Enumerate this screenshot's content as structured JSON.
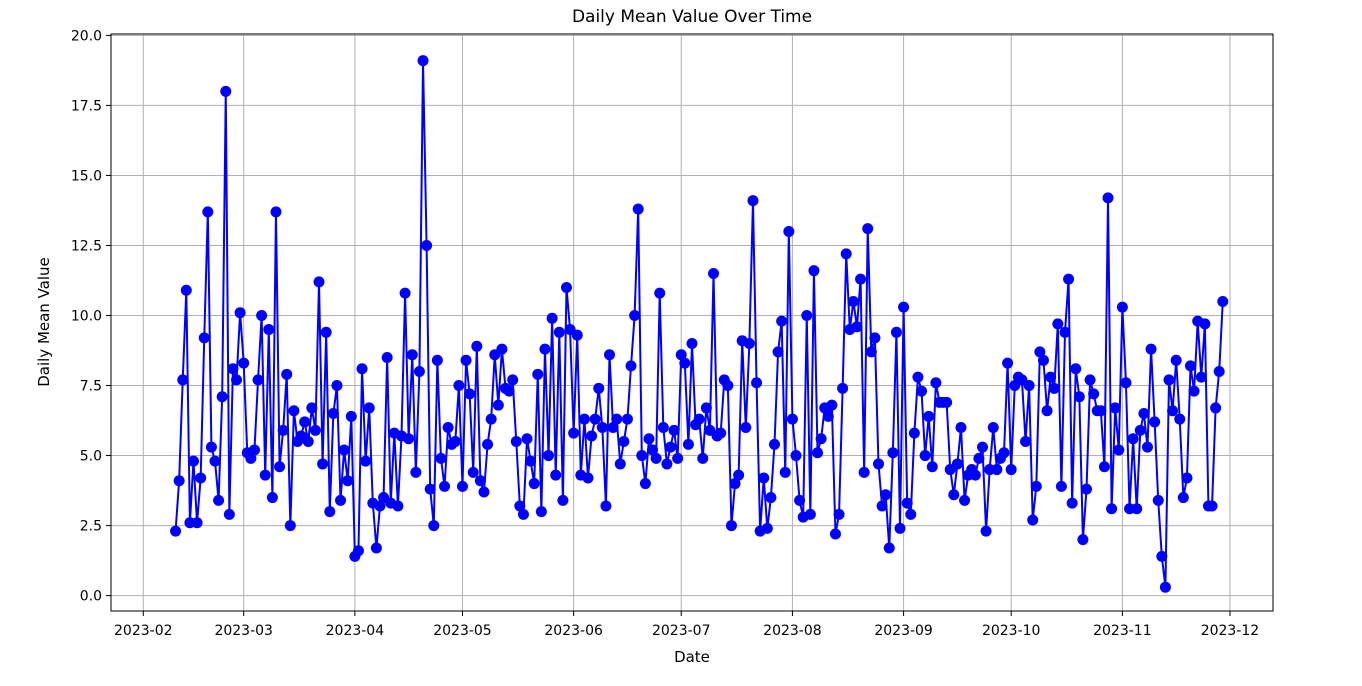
{
  "chart_data": {
    "type": "line",
    "title": "Daily Mean Value Over Time",
    "xlabel": "Date",
    "ylabel": "Daily Mean Value",
    "x_ticks": [
      "2023-02",
      "2023-03",
      "2023-04",
      "2023-05",
      "2023-06",
      "2023-07",
      "2023-08",
      "2023-09",
      "2023-10",
      "2023-11",
      "2023-12"
    ],
    "y_ticks": [
      "0.0",
      "2.5",
      "5.0",
      "7.5",
      "10.0",
      "12.5",
      "15.0",
      "17.5",
      "20.0"
    ],
    "xlim": [
      "2023-01-23",
      "2023-12-13"
    ],
    "ylim": [
      -0.55,
      20.05
    ],
    "grid": true,
    "line_color": "#0000ff",
    "marker": "circle",
    "series": [
      {
        "x_start": "2023-02-10",
        "y": [
          2.3,
          4.1,
          7.7,
          10.9,
          2.6,
          4.8,
          2.6,
          4.2,
          9.2,
          13.7,
          5.3,
          4.8,
          3.4,
          7.1,
          18.0,
          2.9,
          8.1,
          7.7,
          10.1,
          8.3,
          5.1,
          4.9,
          5.2,
          7.7,
          10.0,
          4.3,
          9.5,
          3.5,
          13.7,
          4.6,
          5.9,
          7.9,
          2.5,
          6.6,
          5.5,
          5.7,
          6.2,
          5.5,
          6.7,
          5.9,
          11.2,
          4.7,
          9.4,
          3.0,
          6.5,
          7.5,
          3.4,
          5.2,
          4.1,
          6.4,
          1.4,
          1.6,
          8.1,
          4.8,
          6.7,
          3.3,
          1.7,
          3.2,
          3.5,
          8.5,
          3.3,
          5.8,
          3.2,
          5.7,
          10.8,
          5.6,
          8.6,
          4.4,
          8.0,
          19.1,
          12.5,
          3.8,
          2.5,
          8.4,
          4.9,
          3.9,
          6.0,
          5.4,
          5.5,
          7.5,
          3.9,
          8.4,
          7.2,
          4.4,
          8.9,
          4.1,
          3.7,
          5.4,
          6.3,
          8.6,
          6.8,
          8.8,
          7.4,
          7.3,
          7.7,
          5.5,
          3.2,
          2.9,
          5.6,
          4.8,
          4.0,
          7.9,
          3.0,
          8.8,
          5.0,
          9.9,
          4.3,
          9.4,
          3.4,
          11.0,
          9.5,
          5.8,
          9.3,
          4.3,
          6.3,
          4.2,
          5.7,
          6.3,
          7.4,
          6.0,
          3.2,
          8.6,
          6.0,
          6.3,
          4.7,
          5.5,
          6.3,
          8.2,
          10.0,
          13.8,
          5.0,
          4.0,
          5.6,
          5.2,
          4.9,
          10.8,
          6.0,
          4.7,
          5.3,
          5.9,
          4.9,
          8.6,
          8.3,
          5.4,
          9.0,
          6.1,
          6.3,
          4.9,
          6.7,
          5.9,
          11.5,
          5.7,
          5.8,
          7.7,
          7.5,
          2.5,
          4.0,
          4.3,
          9.1,
          6.0,
          9.0,
          14.1,
          7.6,
          2.3,
          4.2,
          2.4,
          3.5,
          5.4,
          8.7,
          9.8,
          4.4,
          13.0,
          6.3,
          5.0,
          3.4,
          2.8,
          10.0,
          2.9,
          11.6,
          5.1,
          5.6,
          6.7,
          6.4,
          6.8,
          2.2,
          2.9,
          7.4,
          12.2,
          9.5,
          10.5,
          9.6,
          11.3,
          4.4,
          13.1,
          8.7,
          9.2,
          4.7,
          3.2,
          3.6,
          1.7,
          5.1,
          9.4,
          2.4,
          10.3,
          3.3,
          2.9,
          5.8,
          7.8,
          7.3,
          5.0,
          6.4,
          4.6,
          7.6,
          6.9,
          6.9,
          6.9,
          4.5,
          3.6,
          4.7,
          6.0,
          3.4,
          4.3,
          4.5,
          4.3,
          4.9,
          5.3,
          2.3,
          4.5,
          6.0,
          4.5,
          4.9,
          5.1,
          8.3,
          4.5,
          7.5,
          7.8,
          7.7,
          5.5,
          7.5,
          2.7,
          3.9,
          8.7,
          8.4,
          6.6,
          7.8,
          7.4,
          9.7,
          3.9,
          9.4,
          11.3,
          3.3,
          8.1,
          7.1,
          2.0,
          3.8,
          7.7,
          7.2,
          6.6,
          6.6,
          4.6,
          14.2,
          3.1,
          6.7,
          5.2,
          10.3,
          7.6,
          3.1,
          5.6,
          3.1,
          5.9,
          6.5,
          5.3,
          8.8,
          6.2,
          3.4,
          1.4,
          0.3,
          7.7,
          6.6,
          8.4,
          6.3,
          3.5,
          4.2,
          8.2,
          7.3,
          9.8,
          7.8,
          9.7,
          3.2,
          3.2,
          6.7,
          8.0,
          10.5
        ]
      }
    ]
  }
}
